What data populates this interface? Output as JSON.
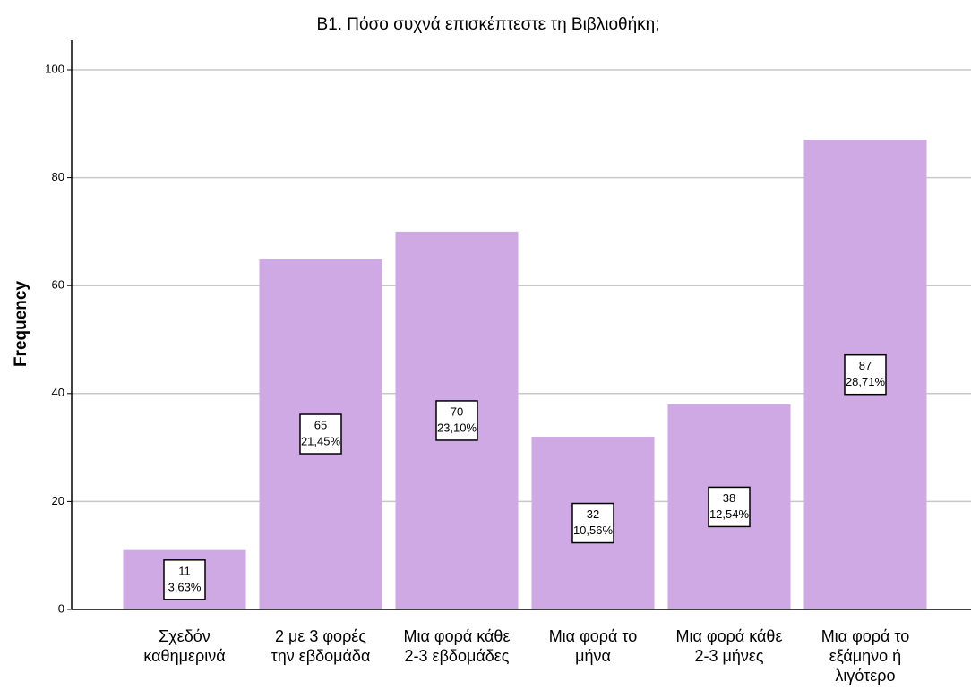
{
  "chart_data": {
    "type": "bar",
    "title": "B1. Πόσο συχνά επισκέπτεστε τη Βιβλιοθήκη;",
    "y_label": "Frequency",
    "categories": [
      [
        "Σχεδόν",
        "καθημερινά"
      ],
      [
        "2 με 3 φορές",
        "την εβδομάδα"
      ],
      [
        "Μια φορά κάθε",
        "2-3 εβδομάδες"
      ],
      [
        "Μια φορά το",
        "μήνα"
      ],
      [
        "Μια φορά κάθε",
        "2-3 μήνες"
      ],
      [
        "Μια φορά το",
        "εξάμηνο ή",
        "λιγότερο"
      ]
    ],
    "values": [
      11,
      65,
      70,
      32,
      38,
      87
    ],
    "percent_labels": [
      "3,63%",
      "21,45%",
      "23,10%",
      "10,56%",
      "12,54%",
      "28,71%"
    ],
    "color": "#cfa9e4",
    "ylim": [
      0,
      100
    ],
    "yticks": [
      0,
      20,
      40,
      60,
      80,
      100
    ],
    "grid": true
  }
}
